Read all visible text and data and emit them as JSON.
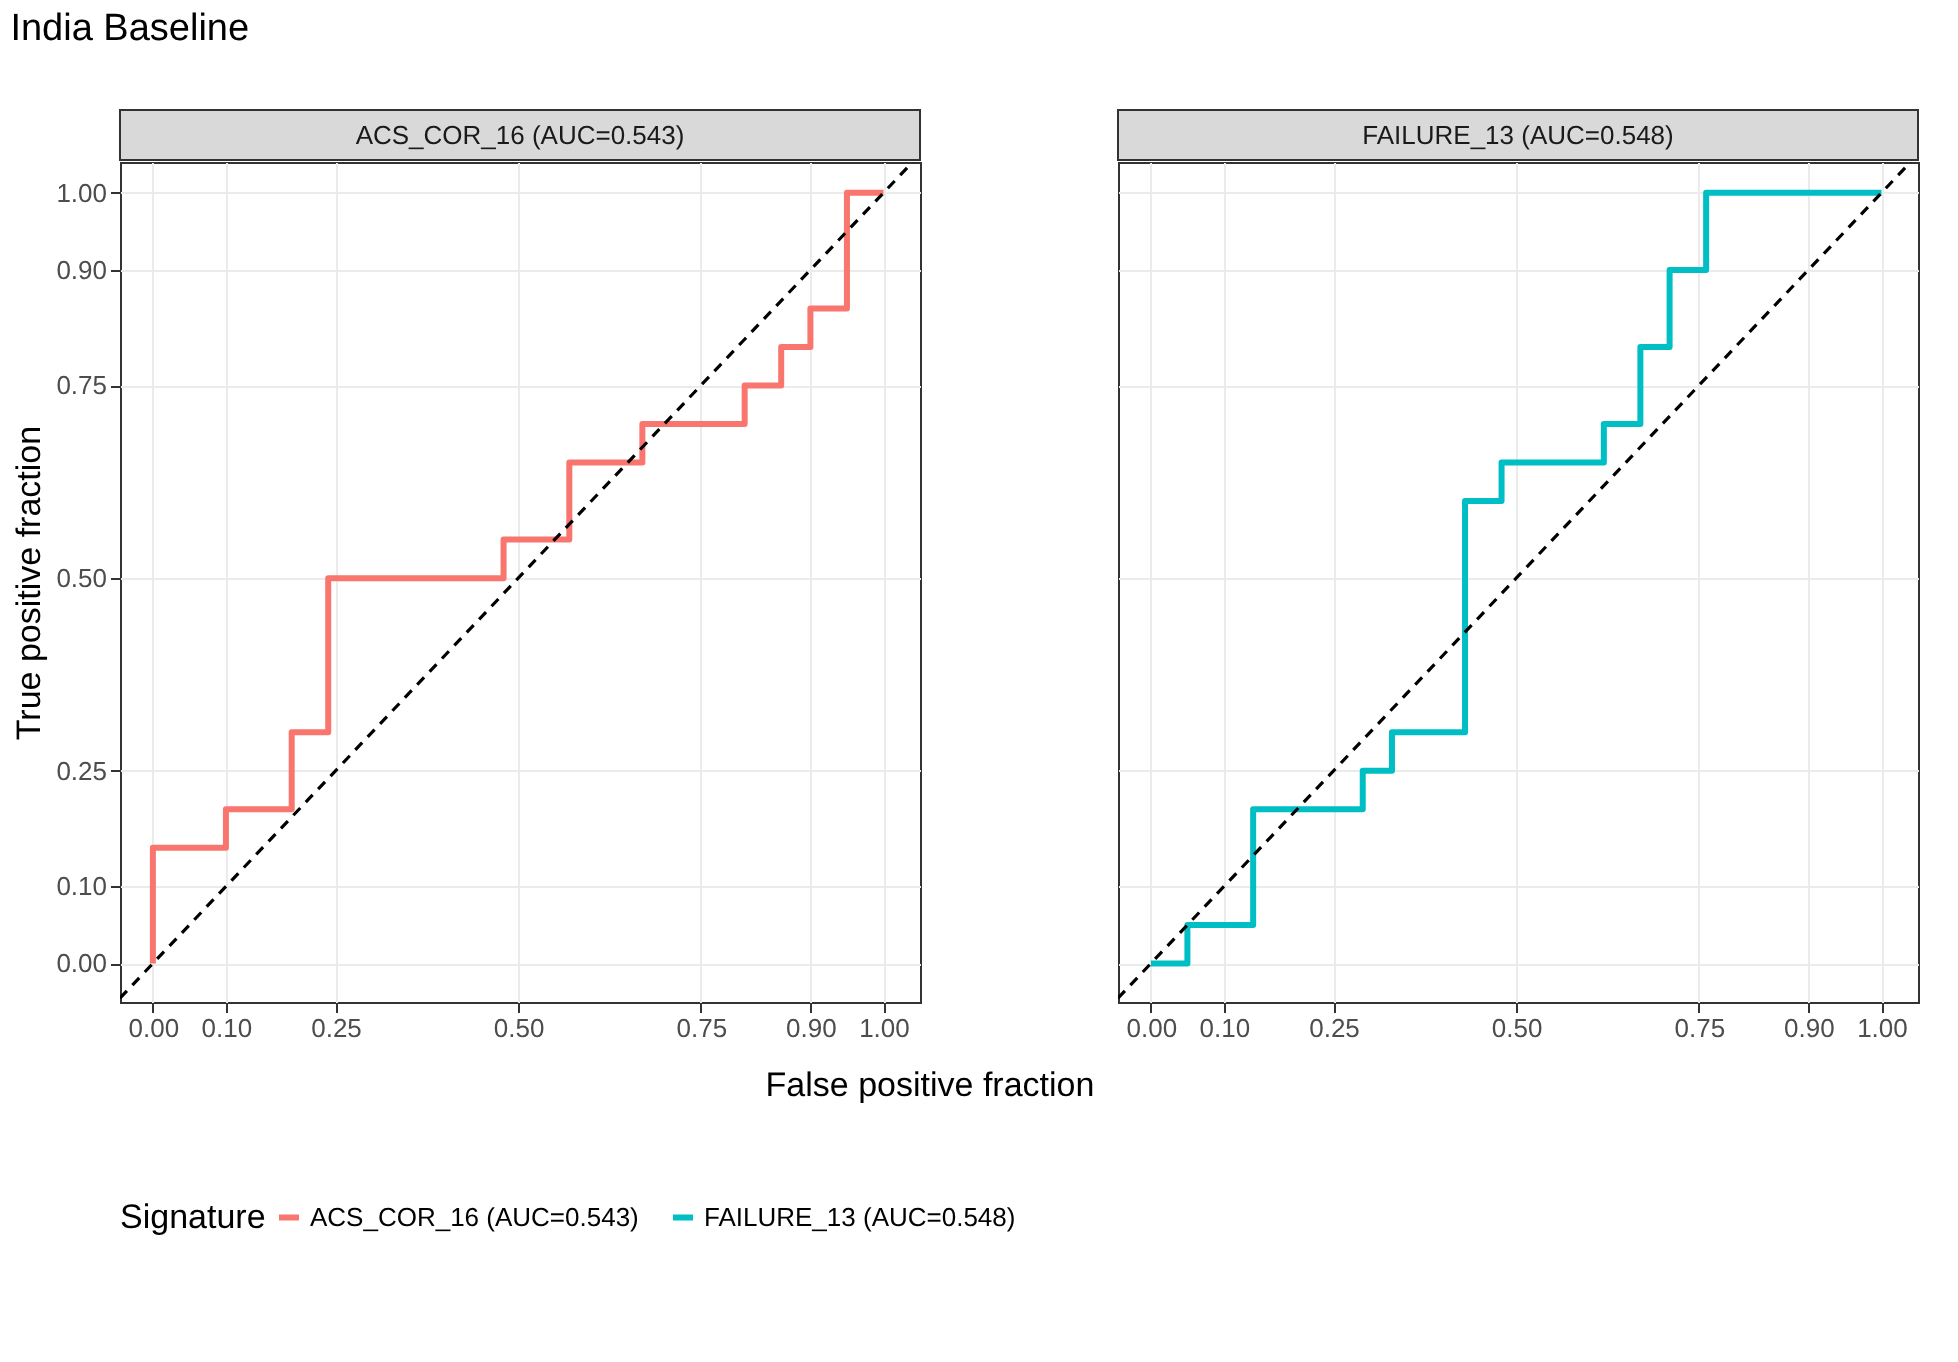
{
  "chart_data": [
    {
      "type": "step",
      "title": "India Baseline",
      "subtitle": "ACS_COR_16 (AUC=0.543)",
      "xlabel": "False positive fraction",
      "ylabel": "True positive fraction",
      "legend_title": "Signature",
      "legend": "bottom",
      "grid": true,
      "line_style": "solid",
      "xlim": [
        -0.045,
        1.05
      ],
      "ylim": [
        -0.05,
        1.04
      ],
      "xticks": [
        {
          "value": 0,
          "label": "0.00"
        },
        {
          "value": 0.1,
          "label": "0.10"
        },
        {
          "value": 0.25,
          "label": "0.25"
        },
        {
          "value": 0.5,
          "label": "0.50"
        },
        {
          "value": 0.75,
          "label": "0.75"
        },
        {
          "value": 0.9,
          "label": "0.90"
        },
        {
          "value": 1,
          "label": "1.00"
        }
      ],
      "yticks": [
        {
          "value": 0,
          "label": "0.00"
        },
        {
          "value": 0.1,
          "label": "0.10"
        },
        {
          "value": 0.25,
          "label": "0.25"
        },
        {
          "value": 0.5,
          "label": "0.50"
        },
        {
          "value": 0.75,
          "label": "0.75"
        },
        {
          "value": 0.9,
          "label": "0.90"
        },
        {
          "value": 1,
          "label": "1.00"
        }
      ],
      "series": [
        {
          "name": "ACS_COR_16 (AUC=0.543)",
          "color": "#f8766d",
          "x": [
            0,
            0,
            0.1,
            0.19,
            0.24,
            0.48,
            0.57,
            0.67,
            0.81,
            0.86,
            0.9,
            0.95,
            1.0
          ],
          "values": [
            0,
            0.15,
            0.2,
            0.3,
            0.5,
            0.55,
            0.65,
            0.7,
            0.75,
            0.8,
            0.85,
            1.0,
            1.0
          ]
        },
        {
          "color": "#000000",
          "type": "line",
          "line_style": "dashed",
          "x": [
            -0.045,
            1.04
          ],
          "values": [
            -0.045,
            1.04
          ]
        }
      ]
    },
    {
      "type": "step",
      "subtitle": "FAILURE_13 (AUC=0.548)",
      "grid": true,
      "tick_labels": "x",
      "line_style": "solid",
      "xlim": [
        -0.045,
        1.05
      ],
      "ylim": [
        -0.05,
        1.04
      ],
      "xticks": [
        {
          "value": 0,
          "label": "0.00"
        },
        {
          "value": 0.1,
          "label": "0.10"
        },
        {
          "value": 0.25,
          "label": "0.25"
        },
        {
          "value": 0.5,
          "label": "0.50"
        },
        {
          "value": 0.75,
          "label": "0.75"
        },
        {
          "value": 0.9,
          "label": "0.90"
        },
        {
          "value": 1,
          "label": "1.00"
        }
      ],
      "series": [
        {
          "name": "FAILURE_13 (AUC=0.548)",
          "color": "#00bfc4",
          "x": [
            0,
            0.05,
            0.14,
            0.29,
            0.33,
            0.43,
            0.48,
            0.62,
            0.67,
            0.71,
            0.76,
            1.0
          ],
          "values": [
            0,
            0.05,
            0.2,
            0.25,
            0.3,
            0.6,
            0.65,
            0.7,
            0.8,
            0.9,
            1.0,
            1.0
          ]
        },
        {
          "color": "#000000",
          "type": "line",
          "line_style": "dashed",
          "x": [
            -0.045,
            1.04
          ],
          "values": [
            -0.045,
            1.04
          ]
        }
      ]
    }
  ]
}
